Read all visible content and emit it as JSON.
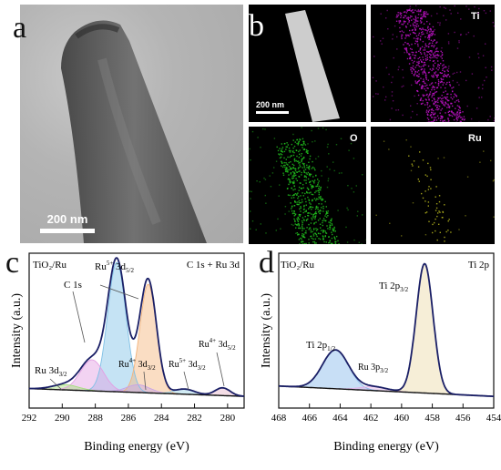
{
  "panels": {
    "a": {
      "letter": "a",
      "scale_bar": "200 nm"
    },
    "b": {
      "letter": "b",
      "scale_bar": "200 nm",
      "maps": [
        {
          "label": "",
          "color": "#cfcfcf"
        },
        {
          "label": "Ti",
          "color": "#c013c8"
        },
        {
          "label": "O",
          "color": "#21c21d"
        },
        {
          "label": "Ru",
          "color": "#b9b81d"
        }
      ]
    },
    "c": {
      "letter": "c",
      "sample": "TiO₂/Ru",
      "region": "C 1s + Ru 3d",
      "peak_labels": {
        "ru5_32_top": "Ru",
        "ru5_32_top_sup": "5+",
        "ru5_32_top_tail": " 3d",
        "ru5_32_top_sub": "5/2",
        "c1s": "C 1s",
        "ru32": "Ru 3d",
        "ru32_sub": "3/2",
        "ru4_32": "Ru",
        "ru4_32_sup": "4+",
        "ru4_32_tail": " 3d",
        "ru4_32_sub": "3/2",
        "ru5_32": "Ru",
        "ru5_32_sup": "5+",
        "ru5_32_tail": " 3d",
        "ru5_32_sub": "3/2",
        "ru4_52": "Ru",
        "ru4_52_sup": "4+",
        "ru4_52_tail": " 3d",
        "ru4_52_sub": "5/2"
      }
    },
    "d": {
      "letter": "d",
      "sample": "TiO₂/Ru",
      "region": "Ti 2p",
      "peak_labels": {
        "ti32": "Ti 2p",
        "ti32_sub": "3/2",
        "ti12": "Ti 2p",
        "ti12_sub": "1/2",
        "ru3p": "Ru 3p",
        "ru3p_sub": "3/2"
      }
    }
  },
  "chart_data": [
    {
      "type": "line",
      "panel": "c",
      "xlabel": "Binding energy (eV)",
      "ylabel": "Intensity (a.u.)",
      "xlim": [
        292,
        279
      ],
      "x_reversed": true,
      "x_ticks": [
        292,
        290,
        288,
        286,
        284,
        282,
        280
      ],
      "series": [
        {
          "name": "",
          "kind": "envelope",
          "color": "#1a1f66",
          "peaks": [
            [
              286.7,
              100,
              0.55
            ],
            [
              284.8,
              84,
              0.5
            ],
            [
              288.2,
              24,
              0.7
            ],
            [
              289.8,
              4,
              0.8
            ],
            [
              285.4,
              6,
              0.7
            ],
            [
              282.6,
              4,
              0.6
            ],
            [
              280.3,
              6,
              0.45
            ]
          ],
          "background": {
            "from": 8,
            "to": 2
          }
        },
        {
          "name": "",
          "kind": "component",
          "color": "#7fc0e6",
          "center": 286.7,
          "height": 100,
          "width": 0.55
        },
        {
          "name": "",
          "kind": "component",
          "color": "#f3b37a",
          "center": 284.8,
          "height": 84,
          "width": 0.5
        },
        {
          "name": "",
          "kind": "component",
          "color": "#e39ee3",
          "center": 288.2,
          "height": 24,
          "width": 0.7
        },
        {
          "name": "",
          "kind": "component",
          "color": "#a3e07a",
          "center": 289.8,
          "height": 4,
          "width": 0.8
        },
        {
          "name": "",
          "kind": "component",
          "color": "#c7a3e6",
          "center": 285.4,
          "height": 6,
          "width": 0.7
        },
        {
          "name": "",
          "kind": "component",
          "color": "#9ad2e6",
          "center": 282.6,
          "height": 4,
          "width": 0.6
        },
        {
          "name": "",
          "kind": "component",
          "color": "#e6b3c8",
          "center": 280.3,
          "height": 6,
          "width": 0.45
        }
      ]
    },
    {
      "type": "line",
      "panel": "d",
      "xlabel": "Binding energy (eV)",
      "ylabel": "Intensity (a.u.)",
      "xlim": [
        468,
        454
      ],
      "x_reversed": true,
      "x_ticks": [
        468,
        466,
        464,
        462,
        460,
        458,
        456,
        454
      ],
      "series": [
        {
          "name": "",
          "kind": "envelope",
          "color": "#1a1f66",
          "peaks": [
            [
              458.5,
              100,
              0.55
            ],
            [
              464.3,
              30,
              0.85
            ],
            [
              461.8,
              3,
              0.9
            ]
          ],
          "background": {
            "from": 10,
            "to": 2
          }
        },
        {
          "name": "",
          "kind": "component",
          "color": "#ecd9a6",
          "center": 458.5,
          "height": 100,
          "width": 0.55
        },
        {
          "name": "",
          "kind": "component",
          "color": "#86b9ea",
          "center": 464.3,
          "height": 30,
          "width": 0.85
        },
        {
          "name": "",
          "kind": "component",
          "color": "#e2b0e6",
          "center": 461.8,
          "height": 3,
          "width": 0.9
        }
      ]
    }
  ]
}
